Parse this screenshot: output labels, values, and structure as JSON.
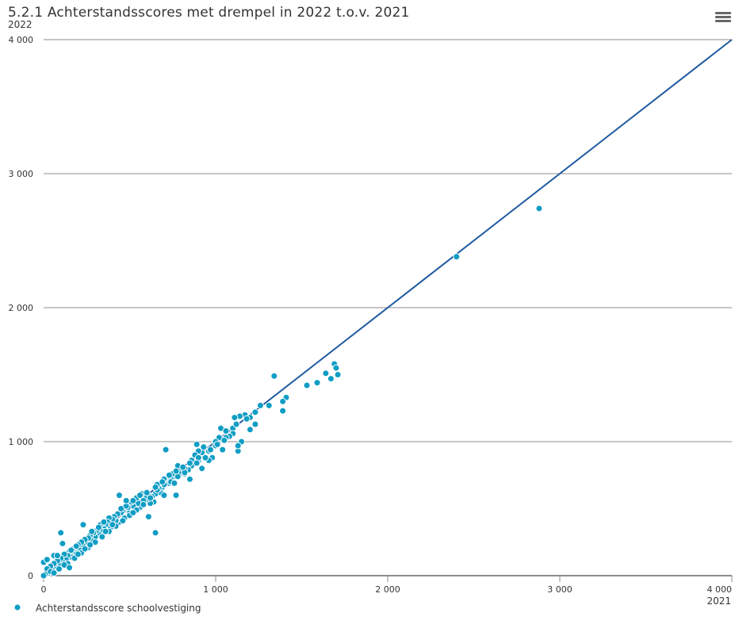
{
  "chart_data": {
    "type": "scatter",
    "title": "5.2.1 Achterstandsscores met drempel in 2022 t.o.v. 2021",
    "xlabel": "2021",
    "ylabel": "2022",
    "xlim": [
      0,
      4000
    ],
    "ylim": [
      0,
      4000
    ],
    "x_ticks": [
      {
        "value": 0,
        "label": "0"
      },
      {
        "value": 1000,
        "label": "1 000"
      },
      {
        "value": 2000,
        "label": "2 000"
      },
      {
        "value": 3000,
        "label": "3 000"
      },
      {
        "value": 4000,
        "label": "4 000"
      }
    ],
    "y_ticks": [
      {
        "value": 0,
        "label": "0"
      },
      {
        "value": 1000,
        "label": "1 000"
      },
      {
        "value": 2000,
        "label": "2 000"
      },
      {
        "value": 3000,
        "label": "3 000"
      },
      {
        "value": 4000,
        "label": "4 000"
      }
    ],
    "grid": "horizontal",
    "legend_position": "bottom-left",
    "reference_line": {
      "x": [
        0,
        4000
      ],
      "y": [
        0,
        4000
      ],
      "color": "#1f5aa0"
    },
    "series": [
      {
        "name": "Achterstandsscore schoolvestiging",
        "color": "#0f9dc4",
        "points": [
          [
            2880,
            2740
          ],
          [
            2400,
            2380
          ],
          [
            1710,
            1500
          ],
          [
            1690,
            1580
          ],
          [
            1700,
            1550
          ],
          [
            1670,
            1470
          ],
          [
            1640,
            1510
          ],
          [
            1590,
            1440
          ],
          [
            1530,
            1420
          ],
          [
            1410,
            1330
          ],
          [
            1390,
            1230
          ],
          [
            1390,
            1300
          ],
          [
            1340,
            1490
          ],
          [
            1310,
            1270
          ],
          [
            1260,
            1270
          ],
          [
            1230,
            1220
          ],
          [
            1230,
            1130
          ],
          [
            1200,
            1090
          ],
          [
            1200,
            1180
          ],
          [
            1170,
            1200
          ],
          [
            1140,
            1190
          ],
          [
            1150,
            1000
          ],
          [
            1130,
            930
          ],
          [
            1130,
            970
          ],
          [
            1110,
            1180
          ],
          [
            1100,
            1100
          ],
          [
            1100,
            1060
          ],
          [
            1080,
            1040
          ],
          [
            1060,
            1030
          ],
          [
            1040,
            940
          ],
          [
            1030,
            1100
          ],
          [
            1020,
            1030
          ],
          [
            1000,
            970
          ],
          [
            980,
            880
          ],
          [
            960,
            930
          ],
          [
            960,
            860
          ],
          [
            940,
            880
          ],
          [
            920,
            920
          ],
          [
            920,
            800
          ],
          [
            900,
            860
          ],
          [
            900,
            930
          ],
          [
            890,
            980
          ],
          [
            880,
            900
          ],
          [
            870,
            830
          ],
          [
            860,
            820
          ],
          [
            850,
            720
          ],
          [
            840,
            790
          ],
          [
            820,
            800
          ],
          [
            800,
            780
          ],
          [
            790,
            760
          ],
          [
            780,
            820
          ],
          [
            770,
            600
          ],
          [
            760,
            740
          ],
          [
            750,
            760
          ],
          [
            740,
            720
          ],
          [
            730,
            690
          ],
          [
            710,
            940
          ],
          [
            700,
            720
          ],
          [
            690,
            660
          ],
          [
            680,
            620
          ],
          [
            670,
            650
          ],
          [
            660,
            680
          ],
          [
            650,
            320
          ],
          [
            650,
            610
          ],
          [
            640,
            550
          ],
          [
            630,
            590
          ],
          [
            620,
            540
          ],
          [
            610,
            600
          ],
          [
            610,
            440
          ],
          [
            600,
            570
          ],
          [
            590,
            580
          ],
          [
            580,
            560
          ],
          [
            570,
            610
          ],
          [
            560,
            510
          ],
          [
            550,
            540
          ],
          [
            540,
            580
          ],
          [
            530,
            490
          ],
          [
            520,
            520
          ],
          [
            510,
            550
          ],
          [
            500,
            470
          ],
          [
            490,
            510
          ],
          [
            480,
            520
          ],
          [
            470,
            430
          ],
          [
            460,
            480
          ],
          [
            450,
            470
          ],
          [
            440,
            600
          ],
          [
            440,
            400
          ],
          [
            430,
            460
          ],
          [
            420,
            410
          ],
          [
            410,
            440
          ],
          [
            400,
            420
          ],
          [
            390,
            360
          ],
          [
            380,
            430
          ],
          [
            370,
            400
          ],
          [
            360,
            380
          ],
          [
            350,
            350
          ],
          [
            340,
            330
          ],
          [
            330,
            380
          ],
          [
            320,
            310
          ],
          [
            310,
            340
          ],
          [
            300,
            290
          ],
          [
            290,
            320
          ],
          [
            280,
            260
          ],
          [
            270,
            300
          ],
          [
            260,
            280
          ],
          [
            250,
            240
          ],
          [
            240,
            270
          ],
          [
            230,
            380
          ],
          [
            230,
            220
          ],
          [
            220,
            250
          ],
          [
            210,
            190
          ],
          [
            200,
            230
          ],
          [
            190,
            170
          ],
          [
            180,
            210
          ],
          [
            170,
            200
          ],
          [
            160,
            140
          ],
          [
            150,
            180
          ],
          [
            140,
            150
          ],
          [
            130,
            120
          ],
          [
            120,
            160
          ],
          [
            110,
            240
          ],
          [
            110,
            100
          ],
          [
            100,
            320
          ],
          [
            100,
            130
          ],
          [
            90,
            80
          ],
          [
            80,
            110
          ],
          [
            70,
            60
          ],
          [
            60,
            90
          ],
          [
            50,
            40
          ],
          [
            40,
            70
          ],
          [
            30,
            20
          ],
          [
            20,
            50
          ],
          [
            10,
            10
          ],
          [
            0,
            0
          ],
          [
            0,
            100
          ],
          [
            20,
            120
          ],
          [
            60,
            150
          ],
          [
            90,
            50
          ],
          [
            140,
            90
          ],
          [
            180,
            130
          ],
          [
            220,
            170
          ],
          [
            260,
            210
          ],
          [
            300,
            250
          ],
          [
            340,
            290
          ],
          [
            380,
            330
          ],
          [
            420,
            370
          ],
          [
            460,
            410
          ],
          [
            500,
            450
          ],
          [
            540,
            490
          ],
          [
            580,
            530
          ],
          [
            620,
            580
          ],
          [
            660,
            640
          ],
          [
            700,
            680
          ],
          [
            740,
            700
          ],
          [
            780,
            740
          ],
          [
            820,
            760
          ],
          [
            860,
            860
          ],
          [
            900,
            880
          ],
          [
            1000,
            1000
          ],
          [
            1050,
            1010
          ],
          [
            1120,
            1130
          ],
          [
            1180,
            1170
          ],
          [
            700,
            600
          ],
          [
            760,
            690
          ],
          [
            820,
            770
          ],
          [
            560,
            600
          ],
          [
            520,
            470
          ],
          [
            480,
            560
          ],
          [
            360,
            330
          ],
          [
            320,
            360
          ],
          [
            280,
            330
          ],
          [
            240,
            200
          ],
          [
            200,
            160
          ],
          [
            160,
            190
          ],
          [
            120,
            80
          ],
          [
            80,
            150
          ],
          [
            40,
            30
          ],
          [
            60,
            20
          ],
          [
            150,
            60
          ],
          [
            190,
            220
          ],
          [
            270,
            230
          ],
          [
            350,
            400
          ],
          [
            400,
            380
          ],
          [
            450,
            500
          ],
          [
            520,
            560
          ],
          [
            600,
            620
          ],
          [
            650,
            660
          ],
          [
            690,
            700
          ],
          [
            730,
            750
          ],
          [
            770,
            780
          ],
          [
            810,
            810
          ],
          [
            850,
            840
          ],
          [
            890,
            840
          ],
          [
            930,
            960
          ],
          [
            970,
            940
          ],
          [
            1010,
            980
          ],
          [
            1060,
            1080
          ]
        ]
      }
    ]
  }
}
